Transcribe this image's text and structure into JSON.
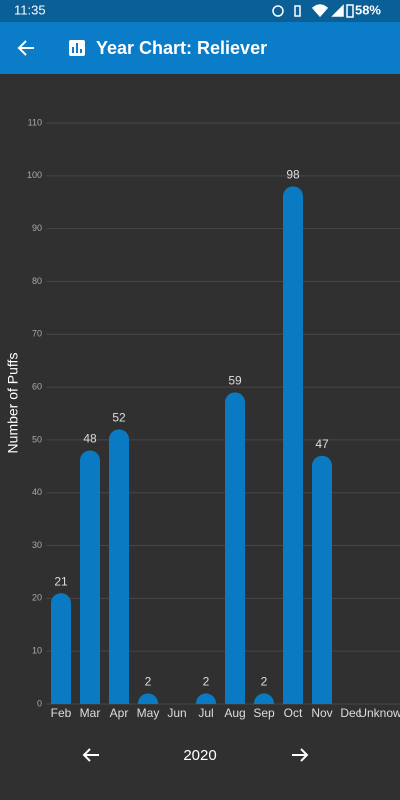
{
  "status_bar": {
    "time": "11:35",
    "battery": "58%"
  },
  "app_bar": {
    "title": "Year Chart: Reliever"
  },
  "chart_data": {
    "type": "bar",
    "y_label": "Number of Puffs",
    "categories": [
      "Feb",
      "Mar",
      "Apr",
      "May",
      "Jun",
      "Jul",
      "Aug",
      "Sep",
      "Oct",
      "Nov",
      "Dec",
      "Unknow"
    ],
    "values": [
      21,
      48,
      52,
      2,
      null,
      2,
      59,
      2,
      98,
      47,
      null,
      null
    ],
    "color": "#0a7bc2",
    "ylim": [
      0,
      110
    ],
    "yticks": [
      0,
      10,
      20,
      30,
      40,
      50,
      60,
      70,
      80,
      90,
      100,
      110
    ],
    "grid": true
  },
  "year_nav": {
    "year": "2020"
  }
}
